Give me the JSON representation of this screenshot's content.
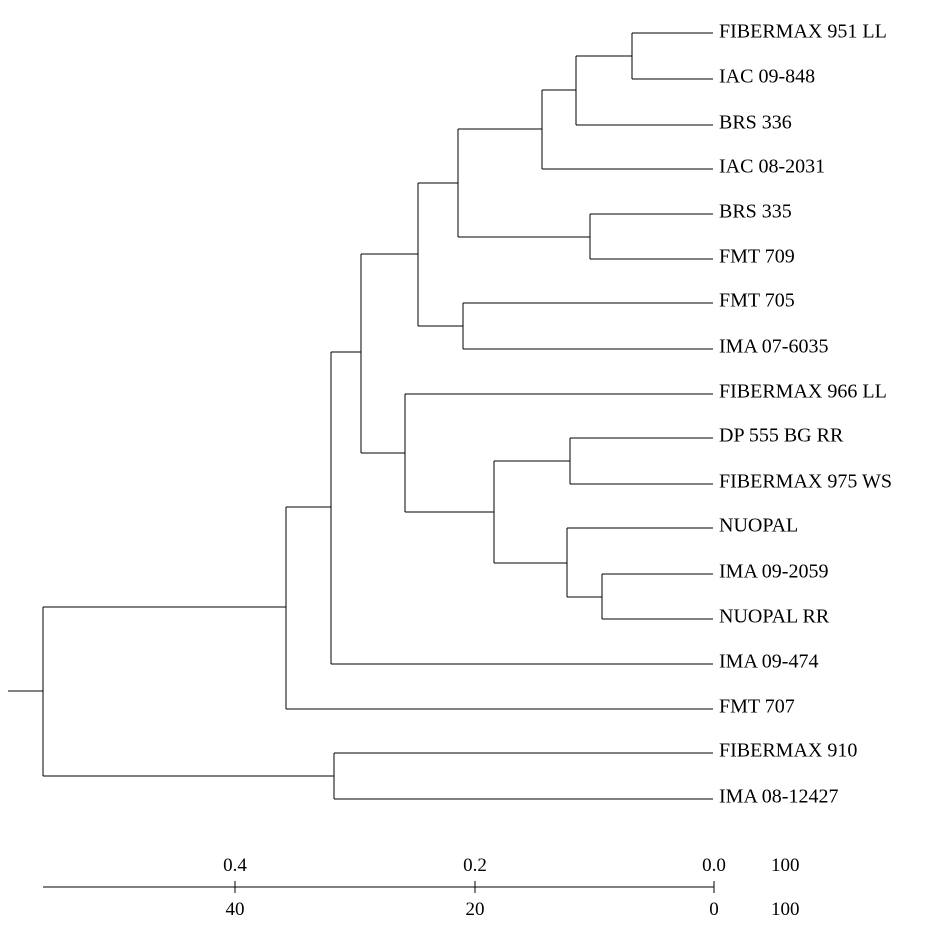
{
  "leaves": [
    "FIBERMAX 951 LL",
    "IAC 09-848",
    "BRS 336",
    "IAC 08-2031",
    "BRS 335",
    "FMT 709",
    "FMT 705",
    "IMA 07-6035",
    "FIBERMAX 966 LL",
    "DP 555 BG RR",
    "FIBERMAX 975 WS",
    "NUOPAL",
    "IMA 09-2059",
    "NUOPAL RR",
    "IMA 09-474",
    "FMT 707",
    "FIBERMAX 910",
    "IMA 08-12427"
  ],
  "scale": {
    "upper_ticks": [
      "0.4",
      "0.2",
      "0.0"
    ],
    "upper_end": "100",
    "lower_ticks": [
      "40",
      "20",
      "0"
    ],
    "lower_end": "100"
  }
}
